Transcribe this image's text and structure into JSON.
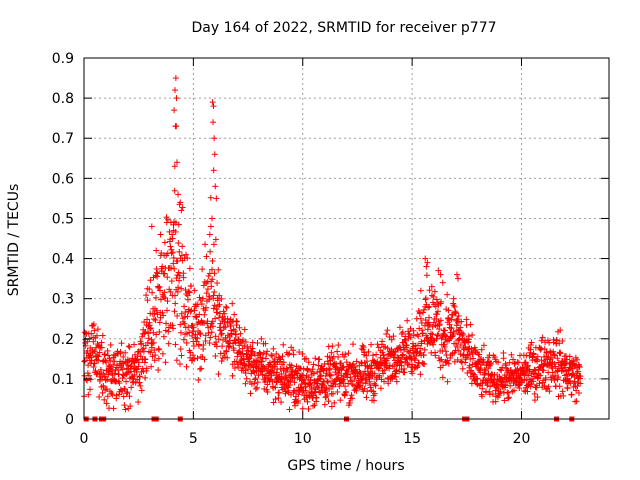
{
  "chart_data": {
    "type": "scatter",
    "title": "Day 164 of 2022, SRMTID for receiver p777",
    "xlabel": "GPS time / hours",
    "ylabel": "SRMTID / TECUs",
    "xlim": [
      0,
      24
    ],
    "ylim": [
      0,
      0.9
    ],
    "xticks": [
      0,
      5,
      10,
      15,
      20
    ],
    "yticks": [
      0,
      0.1,
      0.2,
      0.3,
      0.4,
      0.5,
      0.6,
      0.7,
      0.8,
      0.9
    ],
    "ytick_labels": [
      "0",
      "0.1",
      "0.2",
      "0.3",
      "0.4",
      "0.5",
      "0.6",
      "0.7",
      "0.8",
      "0.9"
    ],
    "grid": true,
    "marker": "+",
    "color": "#ff0000",
    "zero_markers": [
      0.1,
      0.5,
      0.8,
      0.9,
      3.2,
      3.3,
      4.4,
      12.0,
      17.4,
      17.5,
      21.6,
      22.3
    ],
    "envelope": [
      [
        0.0,
        0.14,
        0.07
      ],
      [
        0.5,
        0.16,
        0.07
      ],
      [
        1.0,
        0.11,
        0.06
      ],
      [
        1.5,
        0.12,
        0.06
      ],
      [
        2.0,
        0.1,
        0.06
      ],
      [
        2.5,
        0.13,
        0.06
      ],
      [
        3.0,
        0.22,
        0.09
      ],
      [
        3.5,
        0.3,
        0.12
      ],
      [
        4.0,
        0.36,
        0.16
      ],
      [
        4.3,
        0.42,
        0.2
      ],
      [
        4.6,
        0.28,
        0.1
      ],
      [
        5.0,
        0.22,
        0.08
      ],
      [
        5.5,
        0.25,
        0.1
      ],
      [
        5.9,
        0.35,
        0.14
      ],
      [
        6.2,
        0.24,
        0.08
      ],
      [
        6.5,
        0.22,
        0.07
      ],
      [
        7.0,
        0.18,
        0.06
      ],
      [
        7.5,
        0.14,
        0.05
      ],
      [
        8.0,
        0.13,
        0.05
      ],
      [
        9.0,
        0.11,
        0.05
      ],
      [
        10.0,
        0.09,
        0.05
      ],
      [
        11.0,
        0.1,
        0.05
      ],
      [
        12.0,
        0.11,
        0.05
      ],
      [
        13.0,
        0.11,
        0.05
      ],
      [
        14.0,
        0.15,
        0.05
      ],
      [
        14.5,
        0.17,
        0.04
      ],
      [
        15.0,
        0.17,
        0.05
      ],
      [
        15.5,
        0.22,
        0.08
      ],
      [
        16.0,
        0.24,
        0.08
      ],
      [
        16.5,
        0.2,
        0.07
      ],
      [
        17.0,
        0.22,
        0.07
      ],
      [
        17.5,
        0.16,
        0.06
      ],
      [
        18.0,
        0.12,
        0.05
      ],
      [
        18.5,
        0.1,
        0.04
      ],
      [
        19.0,
        0.1,
        0.04
      ],
      [
        19.5,
        0.1,
        0.04
      ],
      [
        20.0,
        0.11,
        0.04
      ],
      [
        20.5,
        0.12,
        0.05
      ],
      [
        21.0,
        0.14,
        0.05
      ],
      [
        21.5,
        0.15,
        0.06
      ],
      [
        22.0,
        0.12,
        0.05
      ],
      [
        22.7,
        0.1,
        0.04
      ]
    ],
    "spikes": [
      [
        4.12,
        0.77
      ],
      [
        4.16,
        0.82
      ],
      [
        4.2,
        0.85
      ],
      [
        4.23,
        0.8
      ],
      [
        4.18,
        0.73
      ],
      [
        4.22,
        0.73
      ],
      [
        4.25,
        0.64
      ],
      [
        4.15,
        0.63
      ],
      [
        4.3,
        0.56
      ],
      [
        4.4,
        0.54
      ],
      [
        4.45,
        0.52
      ],
      [
        4.1,
        0.47
      ],
      [
        4.05,
        0.45
      ],
      [
        3.95,
        0.43
      ],
      [
        3.7,
        0.44
      ],
      [
        3.5,
        0.46
      ],
      [
        3.1,
        0.48
      ],
      [
        3.3,
        0.42
      ],
      [
        5.88,
        0.79
      ],
      [
        5.92,
        0.78
      ],
      [
        5.9,
        0.74
      ],
      [
        5.95,
        0.7
      ],
      [
        5.98,
        0.66
      ],
      [
        5.93,
        0.62
      ],
      [
        6.0,
        0.58
      ],
      [
        6.05,
        0.55
      ],
      [
        5.85,
        0.5
      ],
      [
        5.8,
        0.48
      ],
      [
        5.75,
        0.46
      ],
      [
        15.6,
        0.4
      ],
      [
        15.7,
        0.39
      ],
      [
        15.65,
        0.38
      ],
      [
        16.2,
        0.37
      ],
      [
        16.3,
        0.36
      ],
      [
        16.4,
        0.34
      ],
      [
        17.05,
        0.36
      ],
      [
        17.1,
        0.35
      ],
      [
        15.9,
        0.33
      ],
      [
        15.4,
        0.32
      ],
      [
        16.6,
        0.31
      ],
      [
        16.9,
        0.3
      ]
    ]
  }
}
